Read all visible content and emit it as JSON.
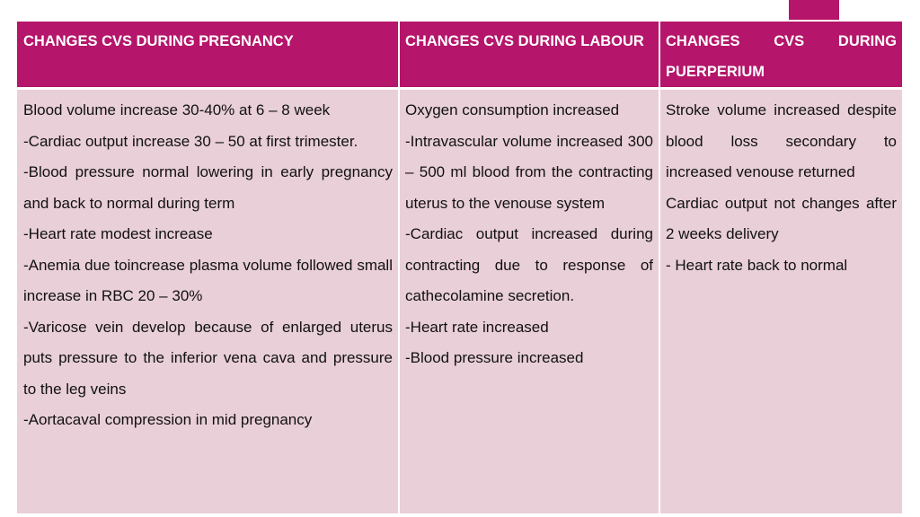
{
  "table": {
    "headers": [
      "CHANGES CVS DURING PREGNANCY",
      "CHANGES CVS DURING LABOUR",
      "CHANGES CVS DURING PUERPERIUM"
    ],
    "columns": [
      {
        "entries": [
          "Blood volume increase 30-40% at 6 – 8 week",
          "-Cardiac output increase 30 – 50 at first trimester.",
          "-Blood pressure normal lowering in early pregnancy and back to normal during term",
          "-Heart rate modest increase",
          "-Anemia due toincrease plasma volume followed small increase in RBC 20 – 30%",
          "-Varicose vein develop because of enlarged uterus puts pressure to the inferior vena cava and pressure to the leg veins",
          "-Aortacaval compression in mid pregnancy"
        ]
      },
      {
        "entries": [
          "Oxygen consumption increased",
          "-Intravascular volume increased 300 – 500 ml blood from the contracting uterus to the venouse system",
          "-Cardiac output increased during contracting due to response of cathecolamine secretion.",
          "-Heart rate increased",
          "-Blood pressure increased"
        ]
      },
      {
        "entries": [
          "Stroke volume increased despite blood loss secondary to increased venouse returned",
          "Cardiac output not changes after 2 weeks delivery",
          "- Heart rate back to normal"
        ]
      }
    ]
  },
  "colors": {
    "header_bg": "#b5156a",
    "cell_bg": "#e9cfd7"
  }
}
